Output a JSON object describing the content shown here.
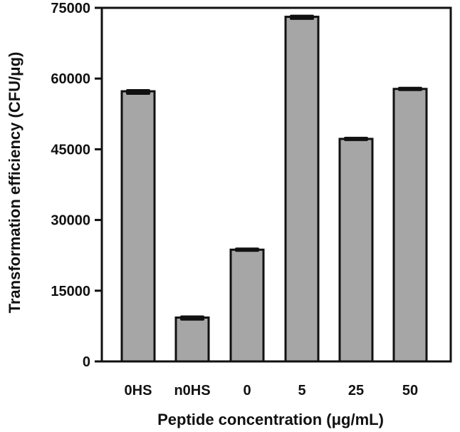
{
  "chart_data": {
    "type": "bar",
    "categories": [
      "0HS",
      "n0HS",
      "0",
      "5",
      "25",
      "50"
    ],
    "values": [
      57300,
      9300,
      23700,
      73100,
      47200,
      57800
    ],
    "errors": [
      450,
      400,
      250,
      400,
      300,
      250
    ],
    "xlabel": "Peptide concentration (μg/mL)",
    "ylabel": "Transformation efficiency (CFU/μg)",
    "ylim": [
      0,
      75000
    ],
    "yticks": [
      0,
      15000,
      30000,
      45000,
      60000,
      75000
    ],
    "bar_color": "#a6a6a6",
    "grid": false,
    "legend": "none"
  }
}
